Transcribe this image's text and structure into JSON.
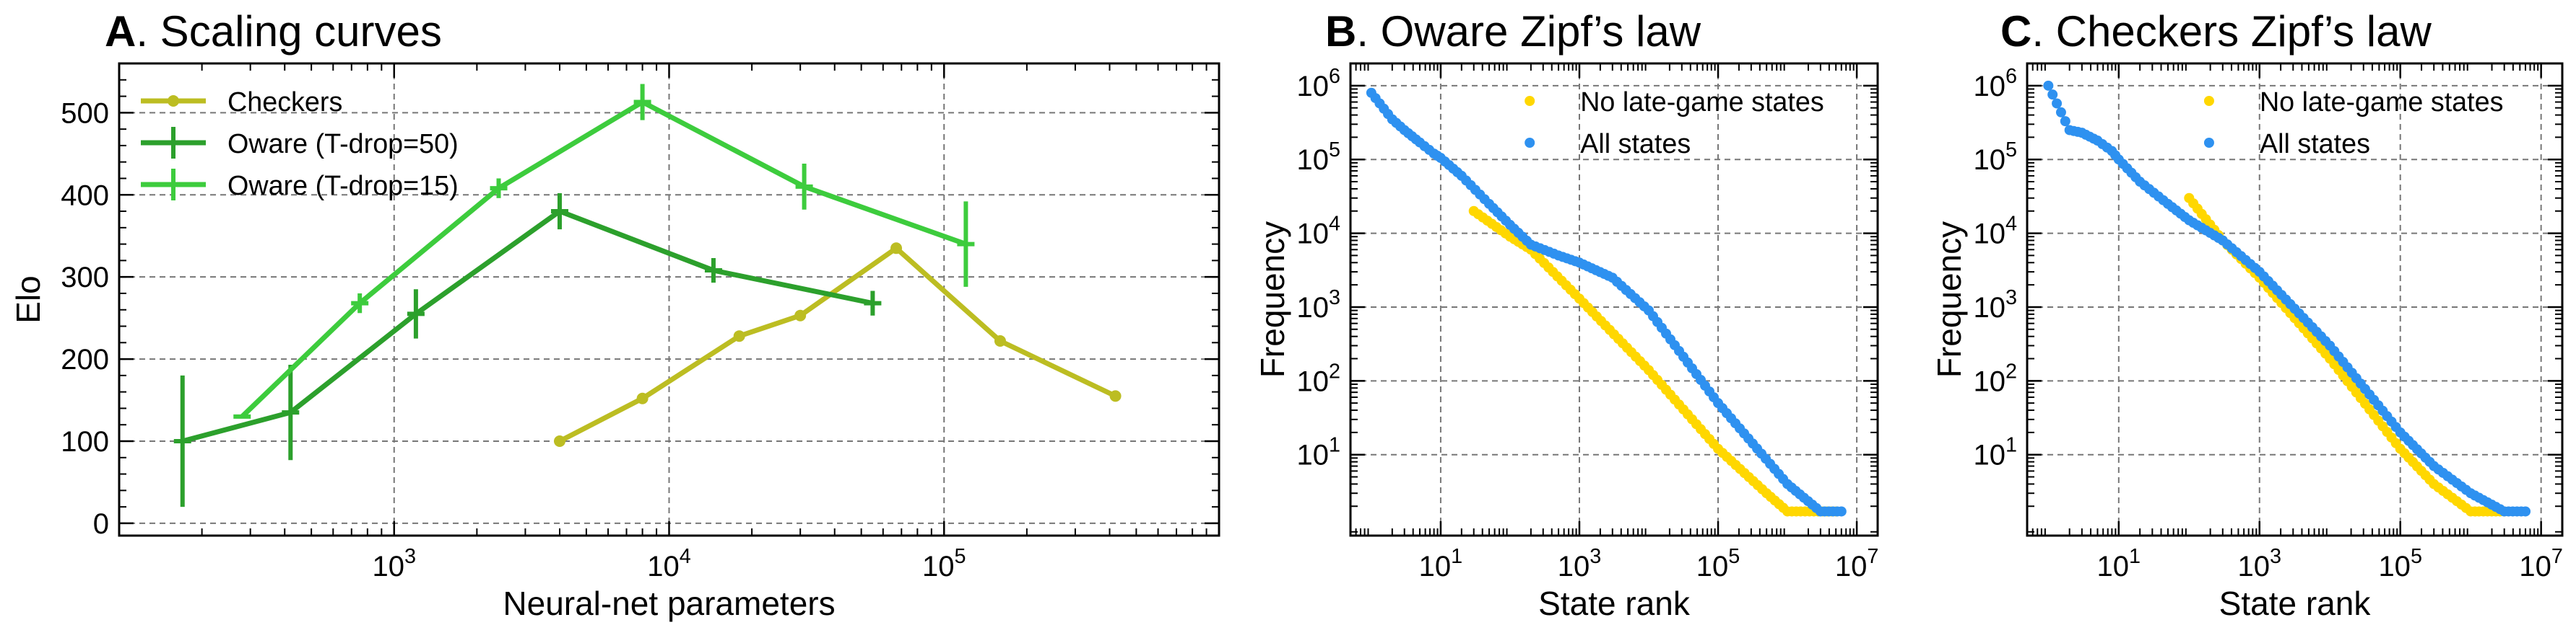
{
  "chart_data": [
    {
      "type": "line",
      "panel_letter": "A",
      "title": ". Scaling curves",
      "xlabel": "Neural-net parameters",
      "ylabel": "Elo",
      "xscale": "log",
      "xlim": [
        100,
        1000000
      ],
      "ylim": [
        -15,
        560
      ],
      "xticks": [
        {
          "v": 1000,
          "base": "10",
          "exp": "3"
        },
        {
          "v": 10000,
          "base": "10",
          "exp": "4"
        },
        {
          "v": 100000,
          "base": "10",
          "exp": "5"
        }
      ],
      "yticks": [
        0,
        100,
        200,
        300,
        400,
        500
      ],
      "grid": true,
      "legend_position": "top-left",
      "series": [
        {
          "name": "Checkers",
          "color": "#bcbd22",
          "marker": "dot",
          "x": [
            4000,
            8000,
            18000,
            30000,
            67000,
            160000,
            420000
          ],
          "y": [
            100,
            152,
            228,
            253,
            335,
            222,
            155
          ]
        },
        {
          "name": "Oware (T-drop=50)",
          "color": "#2ca02c",
          "marker": "errorbar",
          "x": [
            170,
            420,
            1200,
            4000,
            14500,
            55000
          ],
          "y": [
            100,
            135,
            255,
            380,
            308,
            268
          ],
          "err": [
            80,
            58,
            30,
            22,
            15,
            15
          ]
        },
        {
          "name": "Oware (T-drop=15)",
          "color": "#3dcc3d",
          "marker": "errorbar",
          "x": [
            280,
            750,
            2400,
            8000,
            31000,
            120000
          ],
          "y": [
            130,
            268,
            408,
            513,
            410,
            340
          ],
          "err": [
            0,
            12,
            12,
            22,
            28,
            52
          ]
        }
      ]
    },
    {
      "type": "scatter",
      "panel_letter": "B",
      "title": ". Oware Zipf’s law",
      "xlabel": "State rank",
      "ylabel": "Frequency",
      "xscale": "log",
      "yscale": "log",
      "xlim": [
        0.5,
        20000000
      ],
      "ylim": [
        0.8,
        2000000
      ],
      "xticks": [
        {
          "v": 10,
          "base": "10",
          "exp": "1"
        },
        {
          "v": 1000,
          "base": "10",
          "exp": "3"
        },
        {
          "v": 100000,
          "base": "10",
          "exp": "5"
        },
        {
          "v": 10000000,
          "base": "10",
          "exp": "7"
        }
      ],
      "yticks": [
        {
          "v": 10,
          "base": "10",
          "exp": "1"
        },
        {
          "v": 100,
          "base": "10",
          "exp": "2"
        },
        {
          "v": 1000,
          "base": "10",
          "exp": "3"
        },
        {
          "v": 10000,
          "base": "10",
          "exp": "4"
        },
        {
          "v": 100000,
          "base": "10",
          "exp": "5"
        },
        {
          "v": 1000000,
          "base": "10",
          "exp": "6"
        }
      ],
      "grid": true,
      "legend_position": "top-right",
      "series": [
        {
          "name": "No late-game states",
          "color": "#ffd700",
          "x": [
            30,
            100,
            200,
            1000,
            10000,
            100000,
            500000,
            1000000,
            5000000
          ],
          "y": [
            20000,
            9000,
            6000,
            1300,
            140,
            12,
            3,
            1.7,
            1.7
          ]
        },
        {
          "name": "All states",
          "color": "#2e91f0",
          "x": [
            1,
            2,
            3,
            5,
            8,
            10,
            20,
            50,
            100,
            200,
            500,
            1000,
            3000,
            10000,
            100000,
            1000000,
            3000000,
            6000000
          ],
          "y": [
            800000,
            350000,
            250000,
            170000,
            120000,
            105000,
            60000,
            25000,
            13000,
            7000,
            5000,
            4000,
            2500,
            900,
            50,
            4,
            1.7,
            1.7
          ]
        }
      ]
    },
    {
      "type": "scatter",
      "panel_letter": "C",
      "title": ". Checkers Zipf’s law",
      "xlabel": "State rank",
      "ylabel": "Frequency",
      "xscale": "log",
      "yscale": "log",
      "xlim": [
        0.5,
        20000000
      ],
      "ylim": [
        0.8,
        2000000
      ],
      "xticks": [
        {
          "v": 10,
          "base": "10",
          "exp": "1"
        },
        {
          "v": 1000,
          "base": "10",
          "exp": "3"
        },
        {
          "v": 100000,
          "base": "10",
          "exp": "5"
        },
        {
          "v": 10000000,
          "base": "10",
          "exp": "7"
        }
      ],
      "yticks": [
        {
          "v": 10,
          "base": "10",
          "exp": "1"
        },
        {
          "v": 100,
          "base": "10",
          "exp": "2"
        },
        {
          "v": 1000,
          "base": "10",
          "exp": "3"
        },
        {
          "v": 10000,
          "base": "10",
          "exp": "4"
        },
        {
          "v": 100000,
          "base": "10",
          "exp": "5"
        },
        {
          "v": 1000000,
          "base": "10",
          "exp": "6"
        }
      ],
      "grid": true,
      "legend_position": "top-right",
      "series": [
        {
          "name": "No late-game states",
          "color": "#ffd700",
          "x": [
            100,
            300,
            1000,
            10000,
            100000,
            300000,
            1000000,
            3000000
          ],
          "y": [
            30000,
            8000,
            2500,
            200,
            12,
            4,
            1.7,
            1.7
          ]
        },
        {
          "name": "All states",
          "color": "#2e91f0",
          "x": [
            1,
            2,
            3,
            5,
            8,
            10,
            20,
            50,
            100,
            300,
            1000,
            10000,
            100000,
            300000,
            1000000,
            3000000,
            6000000
          ],
          "y": [
            1000000,
            250000,
            230000,
            180000,
            130000,
            100000,
            50000,
            25000,
            15000,
            8000,
            3000,
            300,
            20,
            7,
            3,
            1.7,
            1.7
          ]
        }
      ]
    }
  ]
}
